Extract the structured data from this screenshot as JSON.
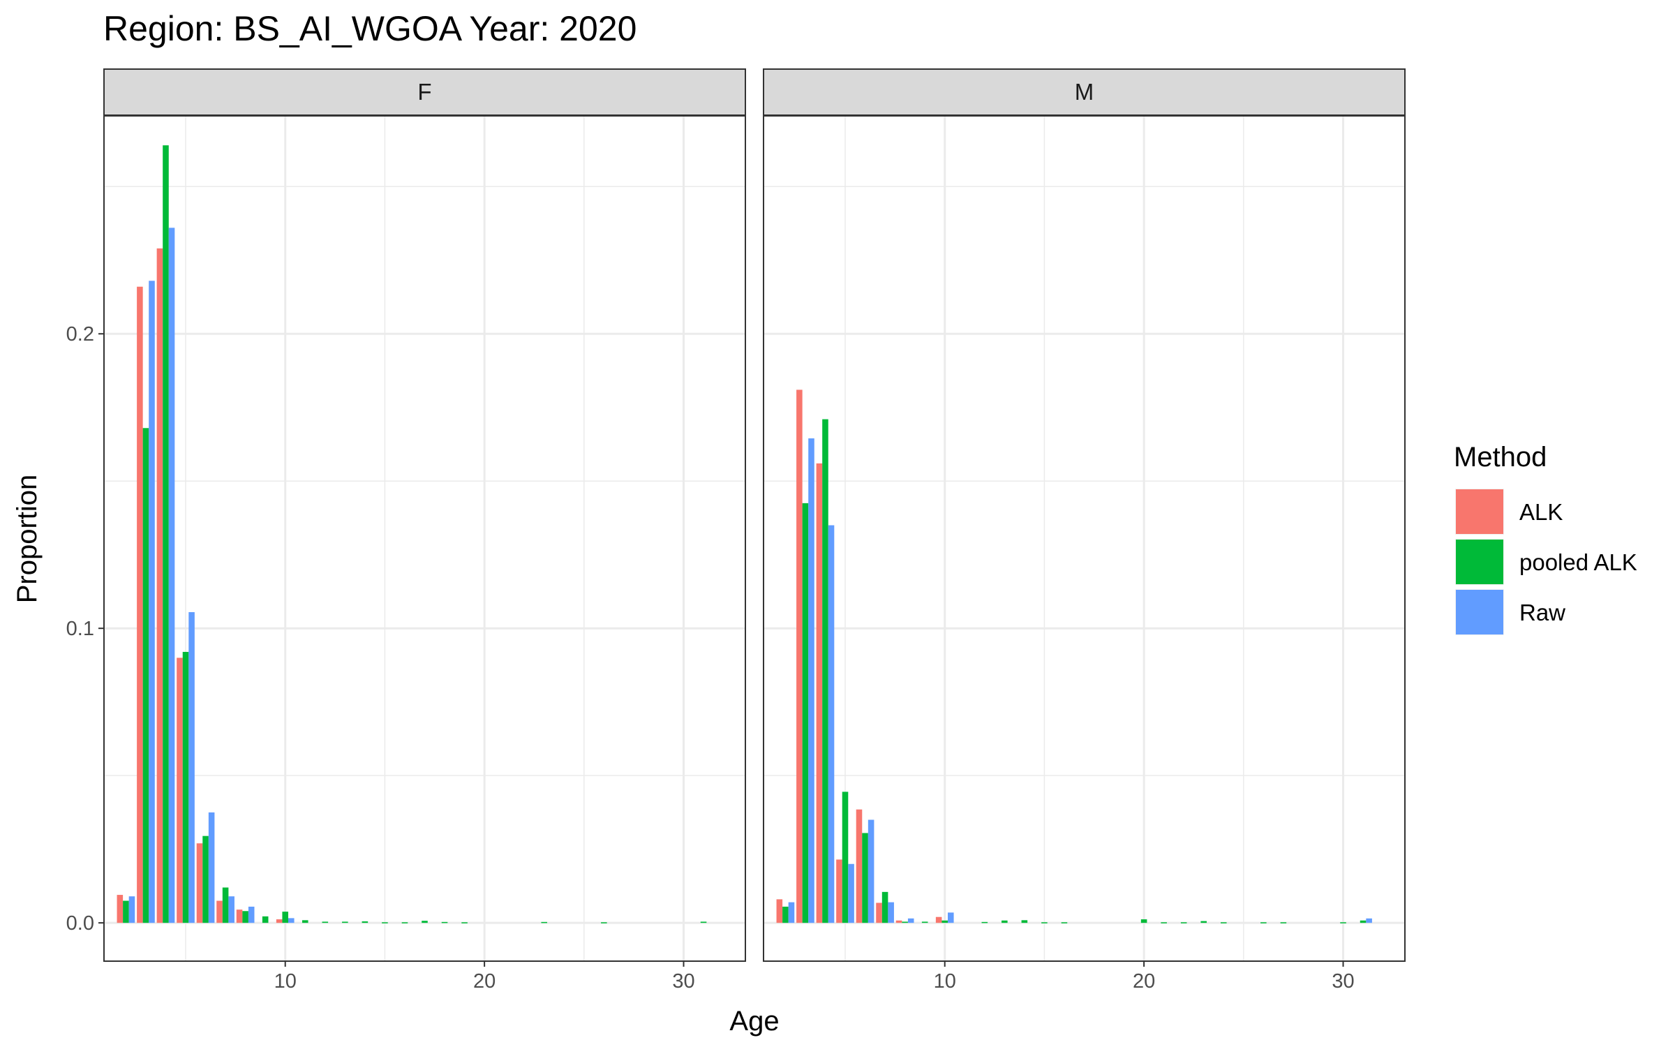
{
  "chart_data": {
    "type": "bar",
    "title": "Region: BS_AI_WGOA Year: 2020",
    "xlabel": "Age",
    "ylabel": "Proportion",
    "xlim": [
      0.9,
      33.1
    ],
    "ylim": [
      -0.013,
      0.274
    ],
    "x_ticks": [
      "10",
      "20",
      "30"
    ],
    "y_ticks": [
      "0.0",
      "0.1",
      "0.2"
    ],
    "grid": true,
    "legend": {
      "title": "Method",
      "placement": "right",
      "entries": [
        {
          "label": "ALK",
          "color": "#F8766D"
        },
        {
          "label": "pooled ALK",
          "color": "#00BA38"
        },
        {
          "label": "Raw",
          "color": "#619CFF"
        }
      ]
    },
    "panels": [
      {
        "label": "F",
        "series": [
          {
            "name": "ALK",
            "color": "#F8766D",
            "points": [
              [
                2,
                0.0095
              ],
              [
                3,
                0.216
              ],
              [
                4,
                0.229
              ],
              [
                5,
                0.09
              ],
              [
                6,
                0.027
              ],
              [
                7,
                0.0075
              ],
              [
                8,
                0.0045
              ],
              [
                10,
                0.0012
              ]
            ]
          },
          {
            "name": "pooled ALK",
            "color": "#00BA38",
            "points": [
              [
                2,
                0.0075
              ],
              [
                3,
                0.168
              ],
              [
                4,
                0.264
              ],
              [
                5,
                0.092
              ],
              [
                6,
                0.0295
              ],
              [
                7,
                0.012
              ],
              [
                8,
                0.004
              ],
              [
                9,
                0.0022
              ],
              [
                10,
                0.0038
              ],
              [
                11,
                0.0009
              ],
              [
                12,
                0.0004
              ],
              [
                13,
                0.0004
              ],
              [
                14,
                0.0005
              ],
              [
                15,
                0.0002
              ],
              [
                16,
                0.0002
              ],
              [
                17,
                0.0007
              ],
              [
                18,
                0.0003
              ],
              [
                19,
                0.0002
              ],
              [
                23,
                0.0003
              ],
              [
                26,
                0.0002
              ],
              [
                31,
                0.0004
              ]
            ]
          },
          {
            "name": "Raw",
            "color": "#619CFF",
            "points": [
              [
                2,
                0.009
              ],
              [
                3,
                0.218
              ],
              [
                4,
                0.236
              ],
              [
                5,
                0.1055
              ],
              [
                6,
                0.0375
              ],
              [
                7,
                0.009
              ],
              [
                8,
                0.0055
              ],
              [
                10,
                0.0016
              ]
            ]
          }
        ]
      },
      {
        "label": "M",
        "series": [
          {
            "name": "ALK",
            "color": "#F8766D",
            "points": [
              [
                2,
                0.008
              ],
              [
                3,
                0.181
              ],
              [
                4,
                0.156
              ],
              [
                5,
                0.0215
              ],
              [
                6,
                0.0385
              ],
              [
                7,
                0.0068
              ],
              [
                8,
                0.0008
              ],
              [
                10,
                0.002
              ]
            ]
          },
          {
            "name": "pooled ALK",
            "color": "#00BA38",
            "points": [
              [
                2,
                0.0055
              ],
              [
                3,
                0.1425
              ],
              [
                4,
                0.171
              ],
              [
                5,
                0.0445
              ],
              [
                6,
                0.0305
              ],
              [
                7,
                0.0105
              ],
              [
                8,
                0.0004
              ],
              [
                9,
                0.0004
              ],
              [
                10,
                0.0008
              ],
              [
                12,
                0.0003
              ],
              [
                13,
                0.0008
              ],
              [
                14,
                0.0009
              ],
              [
                15,
                0.0002
              ],
              [
                16,
                0.0002
              ],
              [
                20,
                0.0012
              ],
              [
                21,
                0.0002
              ],
              [
                22,
                0.0002
              ],
              [
                23,
                0.0006
              ],
              [
                24,
                0.0002
              ],
              [
                26,
                0.0002
              ],
              [
                27,
                0.0002
              ],
              [
                30,
                0.0002
              ],
              [
                31,
                0.0008
              ]
            ]
          },
          {
            "name": "Raw",
            "color": "#619CFF",
            "points": [
              [
                2,
                0.007
              ],
              [
                3,
                0.1645
              ],
              [
                4,
                0.135
              ],
              [
                5,
                0.02
              ],
              [
                6,
                0.035
              ],
              [
                7,
                0.007
              ],
              [
                8,
                0.0015
              ],
              [
                10,
                0.0035
              ],
              [
                31,
                0.0015
              ]
            ]
          }
        ]
      }
    ]
  }
}
